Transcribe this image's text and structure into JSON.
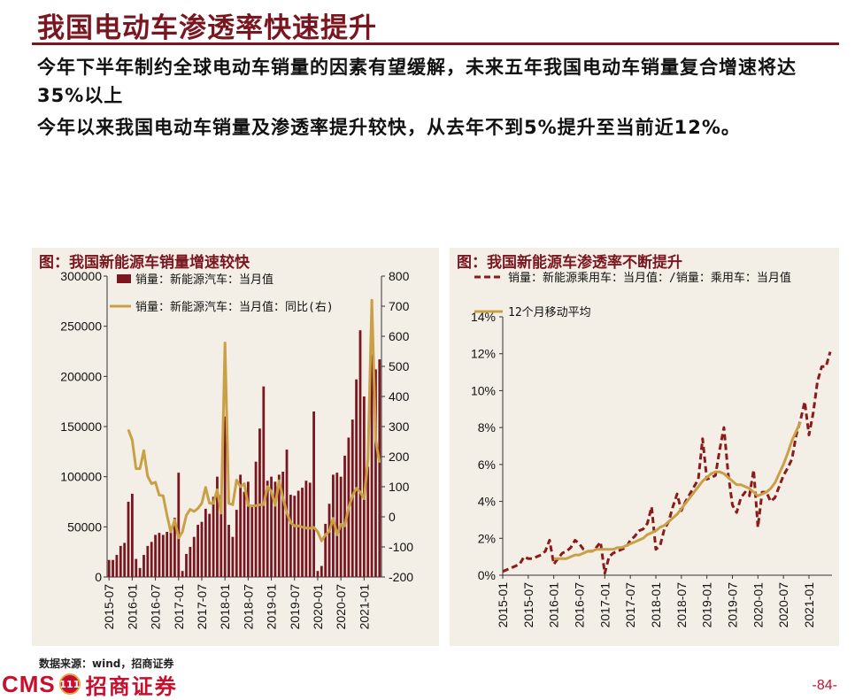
{
  "page": {
    "title": "我国电动车渗透率快速提升",
    "bullets": [
      "今年下半年制约全球电动车销量的因素有望缓解，未来五年我国电动车销量复合增速将达35%以上",
      "今年以来我国电动车销量及渗透率提升较快，从去年不到5%提升至当前近12%。"
    ],
    "source": "数据来源：wind，招商证券",
    "logo_text": "CMS",
    "logo_badge": "111",
    "logo_cn": "招商证券",
    "page_number": "-84-"
  },
  "colors": {
    "title": "#7a1620",
    "bar": "#7a1620",
    "line_gold": "#c9a045",
    "dashed": "#8b1a1a",
    "panel_bg": "#f4efe6"
  },
  "chart_data": [
    {
      "type": "bar",
      "title": "图：我国新能源车销量增速较快",
      "x_tick_labels": [
        "2015-07",
        "2016-01",
        "2016-07",
        "2017-01",
        "2017-07",
        "2018-01",
        "2018-07",
        "2019-01",
        "2019-07",
        "2020-01",
        "2020-07",
        "2021-01"
      ],
      "ylim": [
        0,
        300000
      ],
      "y_ticks": [
        "300000",
        "250000",
        "200000",
        "150000",
        "100000",
        "50000",
        "0"
      ],
      "y2lim": [
        -200,
        800
      ],
      "y2_ticks": [
        "800",
        "700",
        "600",
        "500",
        "400",
        "300",
        "200",
        "100",
        "0",
        "-100",
        "-200"
      ],
      "series": [
        {
          "name": "销量：新能源汽车：当月值",
          "kind": "bar",
          "axis": "left",
          "start": "2015-07",
          "values": [
            17000,
            17000,
            22000,
            31000,
            34000,
            75000,
            83000,
            18000,
            9000,
            22000,
            31000,
            35000,
            42000,
            44000,
            42000,
            45000,
            48000,
            59000,
            104000,
            6000,
            23000,
            30000,
            40000,
            52000,
            55000,
            68000,
            63000,
            80000,
            100000,
            82000,
            160000,
            52000,
            40000,
            67000,
            102000,
            85000,
            95000,
            72000,
            115000,
            148000,
            190000,
            96000,
            100000,
            95000,
            102000,
            105000,
            127000,
            82000,
            81000,
            86000,
            89000,
            96000,
            94000,
            165000,
            6000,
            11000,
            53000,
            73000,
            102000,
            104000,
            100000,
            121000,
            139000,
            157000,
            197000,
            246000,
            180000,
            110000,
            222000,
            207000,
            217000
          ]
        },
        {
          "name": "销量：新能源汽车：当月值：同比(右)",
          "kind": "line",
          "axis": "right",
          "start": "2015-12",
          "values": [
            290,
            255,
            160,
            160,
            220,
            135,
            110,
            115,
            72,
            70,
            5,
            -50,
            -10,
            -70,
            -50,
            5,
            25,
            18,
            28,
            45,
            98,
            45,
            45,
            90,
            12,
            578,
            45,
            40,
            122,
            100,
            110,
            38,
            36,
            37,
            40,
            40,
            100,
            85,
            38,
            120,
            62,
            15,
            -20,
            -30,
            -30,
            -34,
            -37,
            -38,
            -35,
            -50,
            -80,
            -60,
            -48,
            -5,
            -60,
            -25,
            -30,
            30,
            70,
            95,
            82,
            60,
            190,
            720,
            255,
            180
          ]
        }
      ]
    },
    {
      "type": "line",
      "title": "图：我国新能源车渗透率不断提升",
      "x_tick_labels": [
        "2015-01",
        "2015-07",
        "2016-01",
        "2016-07",
        "2017-01",
        "2017-07",
        "2018-01",
        "2018-07",
        "2019-01",
        "2019-07",
        "2020-01",
        "2020-07",
        "2021-01"
      ],
      "ylim": [
        0,
        14
      ],
      "y_ticks": [
        "14%",
        "12%",
        "10%",
        "8%",
        "6%",
        "4%",
        "2%",
        "0%"
      ],
      "series": [
        {
          "name": "销量：新能源乘用车：当月值：/销量：乘用车：当月值",
          "style": "dashed",
          "start": "2015-01",
          "values": [
            0.2,
            0.3,
            0.4,
            0.5,
            0.6,
            1.0,
            0.9,
            0.9,
            1.0,
            1.1,
            1.3,
            1.9,
            0.6,
            0.9,
            1.2,
            1.3,
            1.5,
            1.9,
            1.7,
            1.4,
            1.3,
            1.3,
            1.5,
            1.8,
            0.1,
            1.0,
            1.2,
            1.3,
            1.4,
            1.5,
            1.9,
            2.1,
            2.4,
            2.5,
            2.8,
            3.7,
            1.4,
            1.6,
            2.5,
            2.9,
            3.7,
            4.4,
            3.5,
            4.0,
            4.4,
            4.8,
            5.2,
            7.4,
            5.2,
            5.3,
            5.4,
            6.8,
            8.0,
            5.5,
            3.8,
            3.4,
            4.2,
            4.5,
            4.3,
            5.7,
            2.6,
            4.5,
            4.5,
            4.0,
            4.2,
            4.8,
            5.4,
            5.8,
            6.3,
            7.6,
            8.4,
            9.4,
            7.6,
            8.8,
            10.5,
            11.3,
            11.3,
            12.1
          ]
        },
        {
          "name": "12个月移动平均",
          "style": "solid",
          "start": "2016-01",
          "values": [
            0.9,
            0.9,
            0.9,
            0.9,
            1.0,
            1.1,
            1.1,
            1.2,
            1.3,
            1.3,
            1.4,
            1.4,
            1.4,
            1.4,
            1.4,
            1.5,
            1.5,
            1.6,
            1.7,
            1.8,
            1.9,
            2.0,
            2.2,
            2.3,
            2.4,
            2.6,
            2.7,
            2.9,
            3.1,
            3.3,
            3.6,
            3.9,
            4.2,
            4.5,
            4.8,
            5.1,
            5.3,
            5.5,
            5.6,
            5.6,
            5.5,
            5.3,
            5.1,
            4.9,
            4.9,
            4.8,
            4.7,
            4.5,
            4.3,
            4.4,
            4.5,
            4.7,
            5.0,
            5.5,
            6.0,
            6.6,
            7.3,
            7.8,
            8.3
          ]
        }
      ]
    }
  ]
}
